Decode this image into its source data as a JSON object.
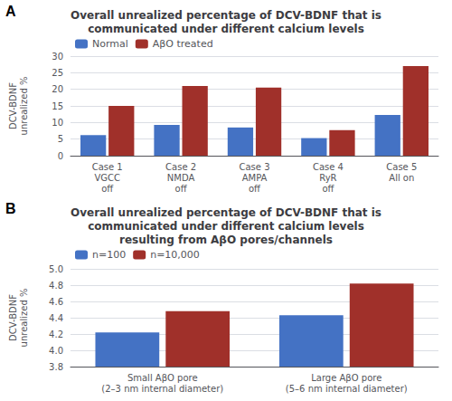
{
  "chart_data": [
    {
      "type": "bar",
      "title": "Overall unrealized percentage of DCV-BDNF that is\ncommunicated under different calcium levels",
      "annotations": [
        "A"
      ],
      "categories": [
        "Case 1\nVGCC\noff",
        "Case 2\nNMDA\noff",
        "Case 3\nAMPA\noff",
        "Case 4\nRyR\noff",
        "Case 5\nAll on"
      ],
      "series": [
        {
          "name": "Normal",
          "color": "#4472C4",
          "values": [
            6.2,
            9.3,
            8.5,
            5.3,
            12.3
          ]
        },
        {
          "name": "AβO treated",
          "color": "#A0302A",
          "values": [
            15.0,
            21.0,
            20.5,
            7.7,
            27.0
          ]
        }
      ],
      "ylabel": "DCV-BDNF\nunrealized %",
      "ylim": [
        0,
        30
      ],
      "yticks": [
        0,
        5,
        10,
        15,
        20,
        25,
        30
      ],
      "grid": true,
      "legend": "upper left"
    },
    {
      "type": "bar",
      "title": "Overall unrealized percentage of DCV-BDNF that is\ncommunicated under different calcium levels\nresulting from AβO pores/channels",
      "annotations": [
        "B"
      ],
      "categories": [
        "Small AβO pore\n(2–3 nm internal diameter)",
        "Large AβO pore\n(5–6 nm internal diameter)"
      ],
      "series": [
        {
          "name": "n=100",
          "color": "#4472C4",
          "values": [
            4.22,
            4.43
          ]
        },
        {
          "name": "n=10,000",
          "color": "#A0302A",
          "values": [
            4.48,
            4.82
          ]
        }
      ],
      "ylabel": "DCV-BDNF\nunrealized %",
      "ylim": [
        3.8,
        5.0
      ],
      "yticks": [
        3.8,
        {
          "value": 4.0,
          "label": "4.0"
        },
        4.2,
        4.4,
        4.6,
        4.8,
        {
          "value": 5.0,
          "label": "5.0"
        }
      ],
      "grid": true,
      "legend": "upper left"
    }
  ]
}
